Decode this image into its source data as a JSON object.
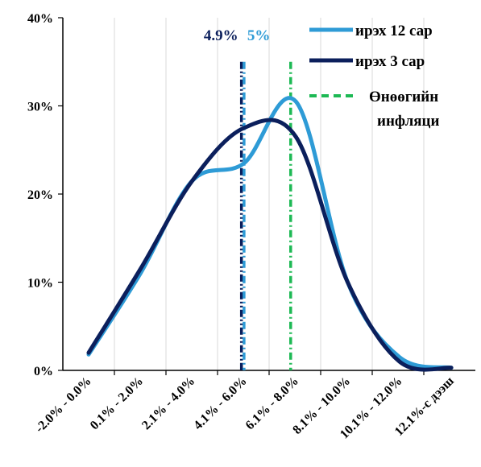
{
  "chart_data": {
    "type": "line",
    "title": "",
    "xlabel": "",
    "ylabel": "",
    "categories": [
      "-2.0% - 0.0%",
      "0.1% - 2.0%",
      "2.1% - 4.0%",
      "4.1% - 6.0%",
      "6.1% - 8.0%",
      "8.1% - 10.0%",
      "10.1% - 12.0%",
      "12.1%-с дээш"
    ],
    "y_ticks": [
      "0%",
      "10%",
      "20%",
      "30%",
      "40%"
    ],
    "ylim": [
      0,
      40
    ],
    "grid": "vertical",
    "legend_position": "top-right",
    "series": [
      {
        "name": "ирэх 12 сар",
        "color": "#2e9bd6",
        "smooth": true,
        "values": [
          1.8,
          11.0,
          21.5,
          23.5,
          30.5,
          10.0,
          1.5,
          0.3
        ]
      },
      {
        "name": "ирэх 3 сар",
        "color": "#0b1f5c",
        "smooth": true,
        "values": [
          2.0,
          11.5,
          21.5,
          27.5,
          26.5,
          10.0,
          1.0,
          0.3
        ]
      }
    ],
    "reference_lines": [
      {
        "name": "Өнөөгийн инфляци",
        "label_lines": [
          "Өнөөгийн",
          "инфляци"
        ],
        "color": "#1db954",
        "dash": "dash-dot",
        "x_value": 6.8,
        "y_top": 35
      },
      {
        "label": "4.9%",
        "color": "#0b1f5c",
        "dash": "dash-dot-dot",
        "x_value": 4.9,
        "y_top": 35
      },
      {
        "label": "5%",
        "color": "#2e9bd6",
        "dash": "dash-dot",
        "x_value": 5.0,
        "y_top": 35
      }
    ]
  }
}
